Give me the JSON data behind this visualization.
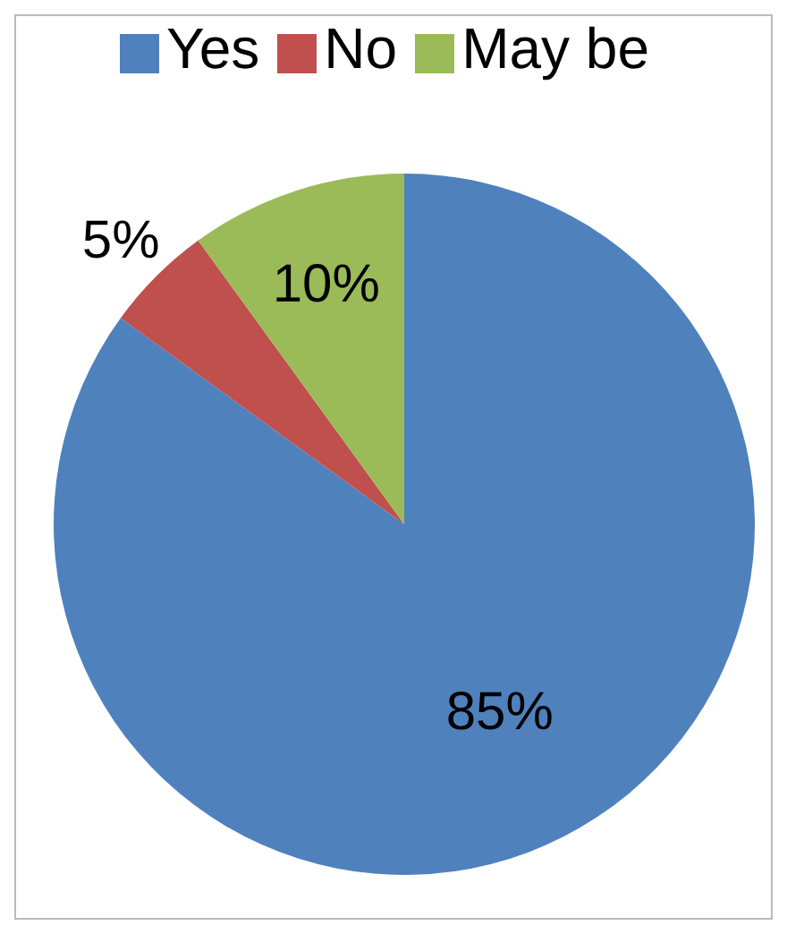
{
  "chart_data": {
    "type": "pie",
    "categories": [
      "Yes",
      "No",
      "May be"
    ],
    "values": [
      85,
      5,
      10
    ],
    "colors": [
      "#4f81bd",
      "#c0504d",
      "#9bbb59"
    ],
    "value_labels": [
      "85%",
      "5%",
      "10%"
    ],
    "legend": "top"
  }
}
